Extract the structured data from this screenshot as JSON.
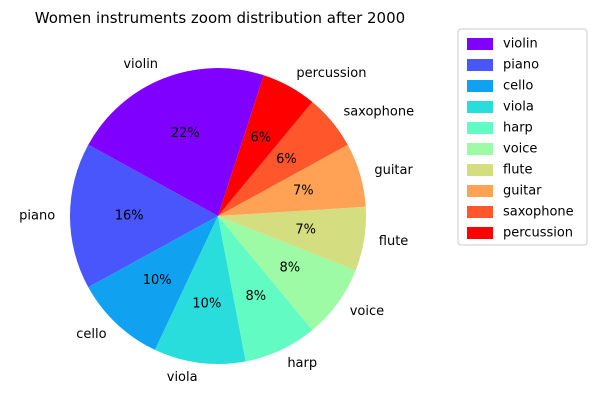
{
  "chart_data": {
    "type": "pie",
    "title": "Women instruments zoom distribution after 2000",
    "legend_position": "right",
    "slices": [
      {
        "label": "violin",
        "value": 22,
        "pct_text": "22%",
        "color": "#8000ff"
      },
      {
        "label": "piano",
        "value": 16,
        "pct_text": "16%",
        "color": "#4856fb"
      },
      {
        "label": "cello",
        "value": 10,
        "pct_text": "10%",
        "color": "#10a2f0"
      },
      {
        "label": "viola",
        "value": 10,
        "pct_text": "10%",
        "color": "#2adddd"
      },
      {
        "label": "harp",
        "value": 8,
        "pct_text": "8%",
        "color": "#62fbc4"
      },
      {
        "label": "voice",
        "value": 8,
        "pct_text": "8%",
        "color": "#9cfba4"
      },
      {
        "label": "flute",
        "value": 7,
        "pct_text": "7%",
        "color": "#d4dd80"
      },
      {
        "label": "guitar",
        "value": 7,
        "pct_text": "7%",
        "color": "#ffa256"
      },
      {
        "label": "saxophone",
        "value": 6,
        "pct_text": "6%",
        "color": "#ff562c"
      },
      {
        "label": "percussion",
        "value": 6,
        "pct_text": "6%",
        "color": "#ff0000"
      }
    ]
  }
}
